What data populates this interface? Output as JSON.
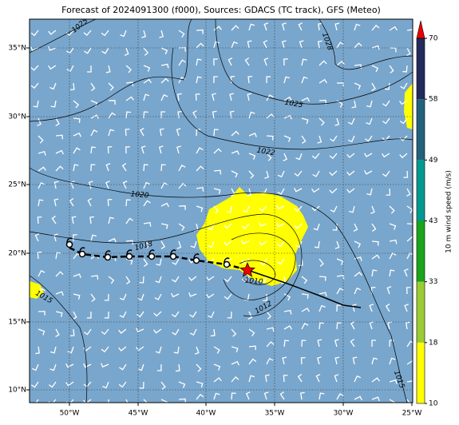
{
  "title": "Forecast of 2024091300 (f000), Sources: GDACS (TC track), GFS (Meteo)",
  "longitude_labels": [
    "50°W",
    "45°W",
    "40°W",
    "35°W",
    "30°W",
    "25°W"
  ],
  "latitude_labels": [
    "35°N",
    "30°N",
    "25°N",
    "20°N",
    "15°N",
    "10°N"
  ],
  "isobar_labels": [
    "1025",
    "1028",
    "1025",
    "1022",
    "1020",
    "1018",
    "1015",
    "1010",
    "1012",
    "1015"
  ],
  "colorbar": {
    "label": "10 m wind speed (m/s)",
    "ticks": [
      10,
      18,
      33,
      43,
      49,
      58,
      70
    ]
  }
}
